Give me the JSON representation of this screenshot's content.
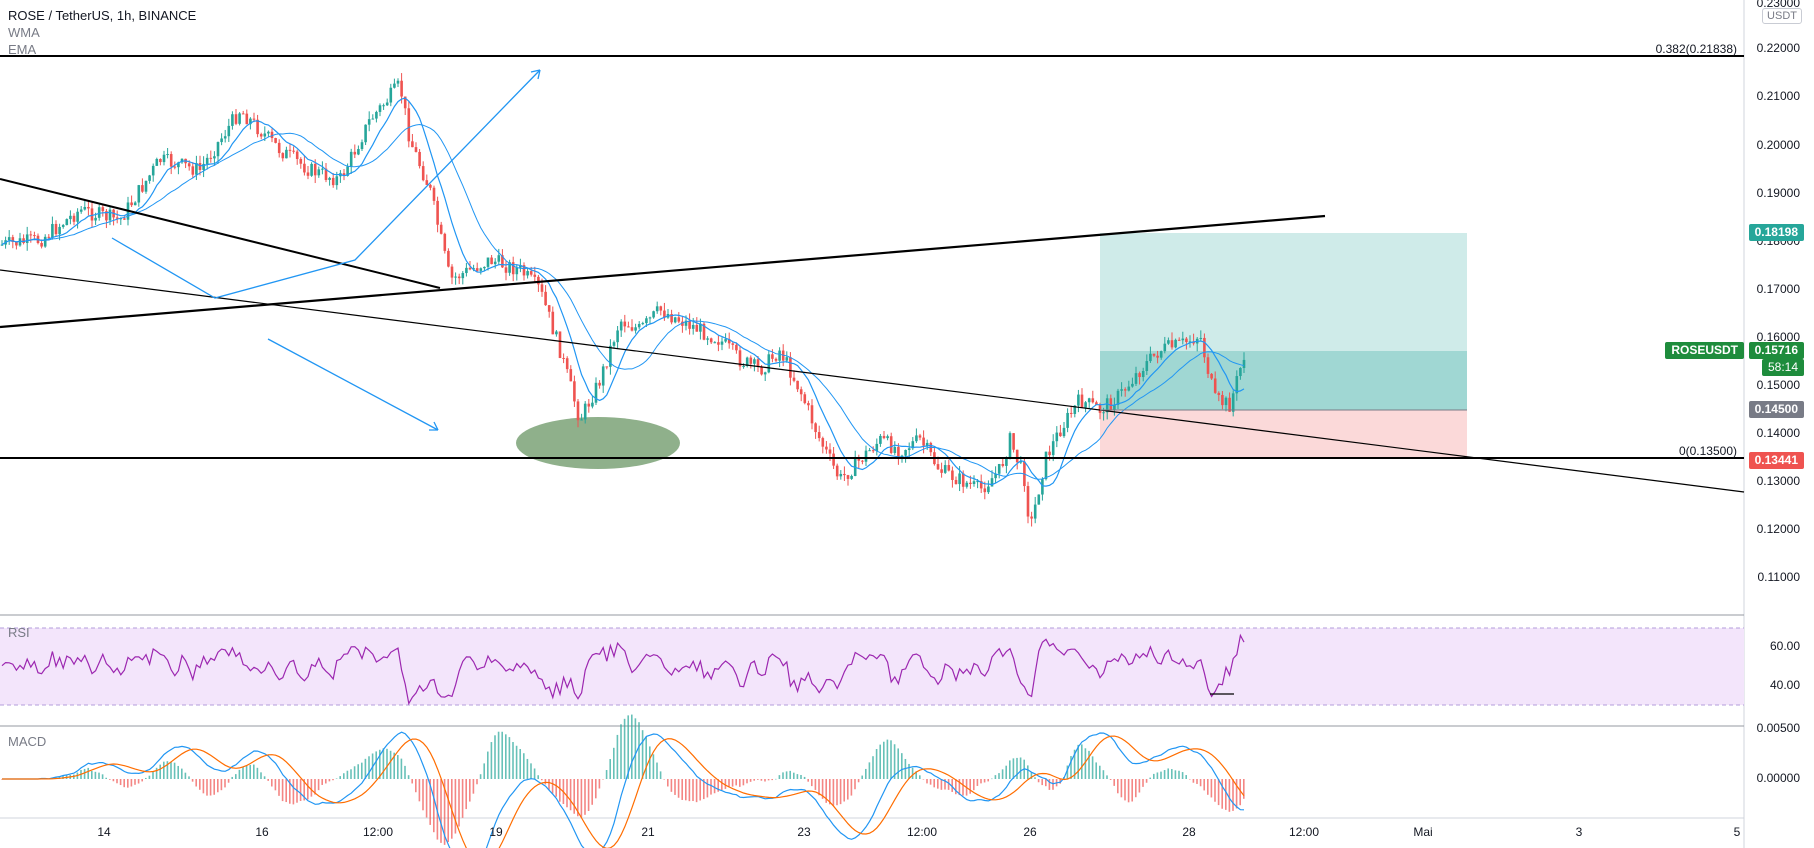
{
  "header": {
    "symbol": "ROSE / TetherUS, 1h, BINANCE",
    "indicators": [
      "WMA",
      "EMA"
    ]
  },
  "price_axis": {
    "labels": [
      "0.23000",
      "0.22000",
      "0.21000",
      "0.20000",
      "0.19000",
      "0.18000",
      "0.17000",
      "0.16000",
      "0.15000",
      "0.14000",
      "0.13000",
      "0.12000",
      "0.11000"
    ],
    "currency": "USDT"
  },
  "price_tags": {
    "target": "0.18198",
    "symbol_name": "ROSEUSDT",
    "current": "0.15716",
    "countdown": "58:14",
    "entry": "0.14500",
    "stop": "0.13441"
  },
  "fib_levels": {
    "top": "0.382(0.21838)",
    "bottom": "0(0.13500)"
  },
  "rsi": {
    "title": "RSI",
    "labels": [
      "60.00",
      "40.00"
    ]
  },
  "macd": {
    "title": "MACD",
    "labels": [
      "0.00500",
      "0.00000"
    ]
  },
  "time_axis": {
    "labels": [
      "14",
      "16",
      "12:00",
      "19",
      "21",
      "23",
      "12:00",
      "26",
      "28",
      "12:00",
      "Mai",
      "3",
      "5"
    ]
  },
  "colors": {
    "up": "#26a69a",
    "down": "#ef5350",
    "ma_blue": "#2196f3",
    "rsi_line": "#9c27b0",
    "macd_orange": "#ff6d00",
    "tag_green": "#26a69a",
    "tag_current": "#1e8c3c",
    "tag_entry": "#787b86",
    "tag_stop": "#ef5350"
  }
}
